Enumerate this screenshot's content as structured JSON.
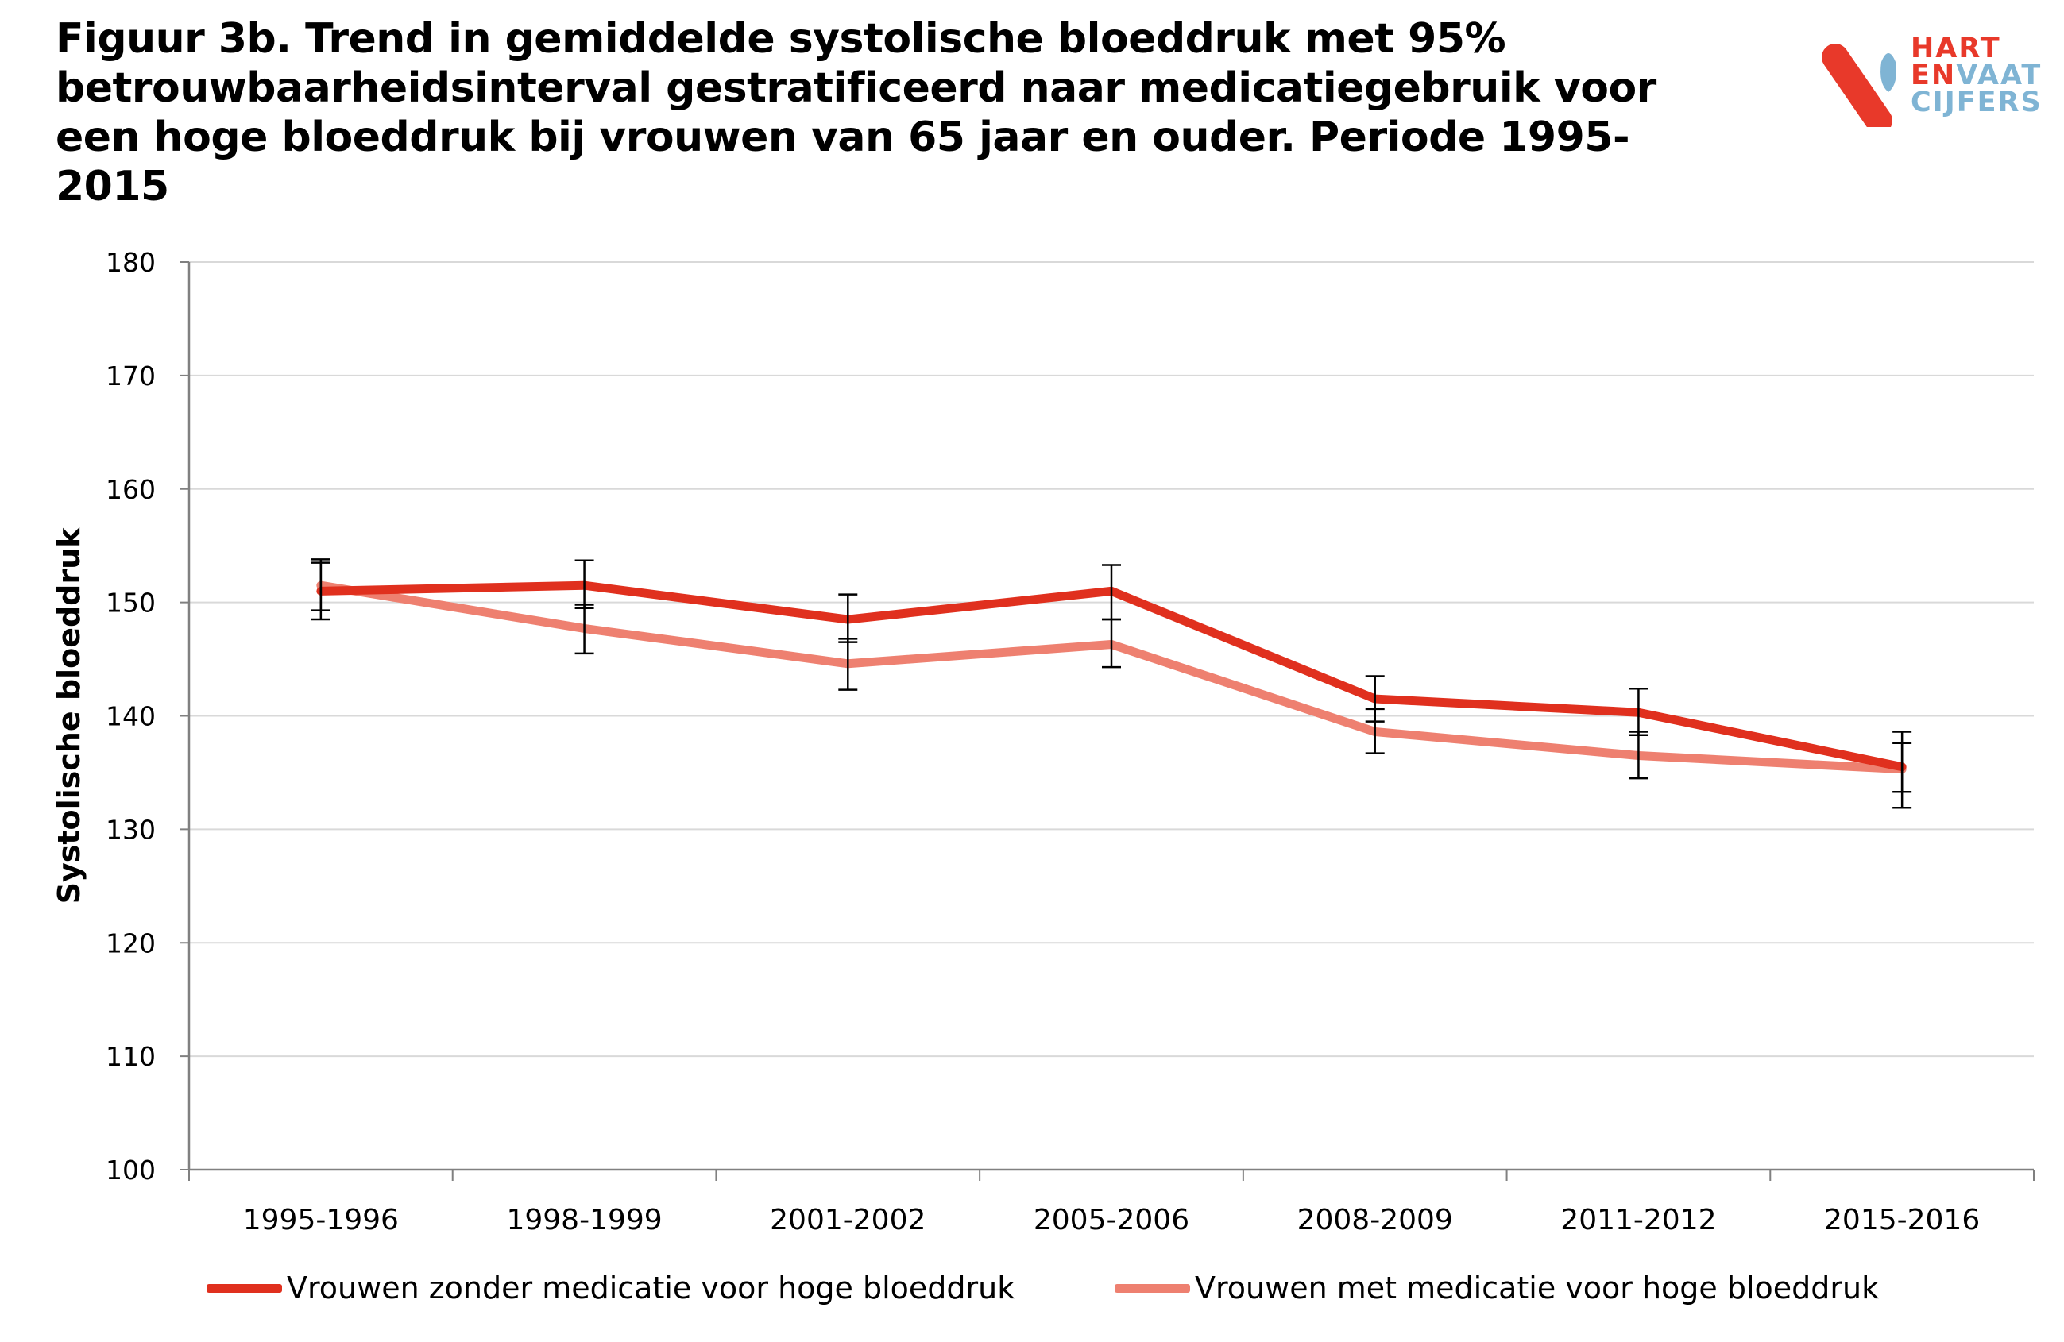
{
  "title": "Figuur 3b. Trend in gemiddelde systolische bloeddruk met 95% betrouwbaarheidsinterval gestratificeerd naar medicatiegebruik voor een hoge bloeddruk bij vrouwen van 65 jaar en ouder. Periode 1995-2015",
  "logo": {
    "line1": "HART",
    "line2a": "EN",
    "line2b": "VAAT",
    "line3": "CIJFERS"
  },
  "colors": {
    "series1": "#e0301e",
    "series2": "#ee8070",
    "grid": "#d9d9d9",
    "axis": "#808080",
    "logo_red": "#e8392a",
    "logo_blue": "#7fb4d4"
  },
  "chart_data": {
    "type": "line",
    "ylabel": "Systolische bloeddruk",
    "xlabel": "",
    "ylim": [
      100,
      180
    ],
    "yticks": [
      100,
      110,
      120,
      130,
      140,
      150,
      160,
      170,
      180
    ],
    "grid": true,
    "legend_position": "bottom",
    "categories": [
      "1995-1996",
      "1998-1999",
      "2001-2002",
      "2005-2006",
      "2008-2009",
      "2011-2012",
      "2015-2016"
    ],
    "series": [
      {
        "name": "Vrouwen zonder medicatie voor hoge bloeddruk",
        "values": [
          151.0,
          151.5,
          148.5,
          151.0,
          141.5,
          140.3,
          135.5
        ],
        "ci_low": [
          148.5,
          149.5,
          146.5,
          148.5,
          139.5,
          138.3,
          133.3
        ],
        "ci_high": [
          153.5,
          153.7,
          150.7,
          153.3,
          143.5,
          142.4,
          137.6
        ]
      },
      {
        "name": "Vrouwen met medicatie voor hoge bloeddruk",
        "values": [
          151.5,
          147.7,
          144.6,
          146.3,
          138.6,
          136.5,
          135.3
        ],
        "ci_low": [
          149.3,
          145.5,
          142.3,
          144.3,
          136.7,
          134.5,
          131.9
        ],
        "ci_high": [
          153.8,
          149.8,
          146.8,
          148.5,
          140.6,
          138.6,
          138.6
        ]
      }
    ]
  }
}
